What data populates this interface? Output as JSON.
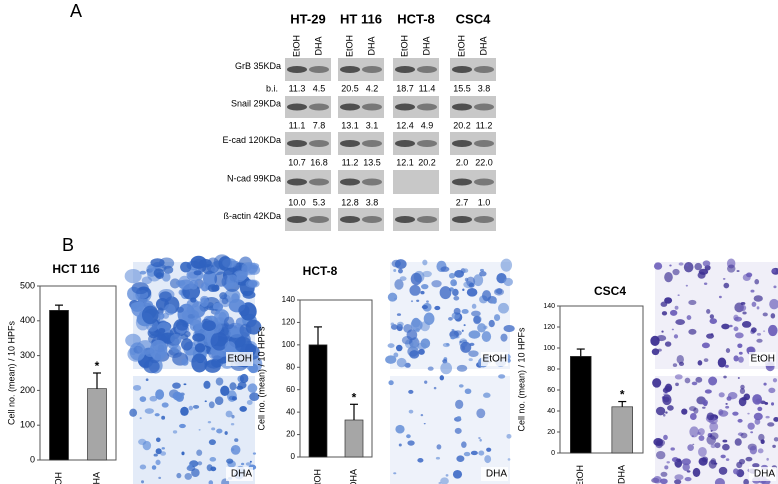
{
  "panel_a": {
    "label": "A",
    "cell_lines": [
      "HT-29",
      "HT 116",
      "HCT-8",
      "CSC4"
    ],
    "lanes": [
      "EtOH",
      "DHA"
    ],
    "bi_label": "b.i.",
    "rows": [
      {
        "protein": "GrB 35KDa",
        "values": [
          "11.3",
          "4.5",
          "20.5",
          "4.2",
          "18.7",
          "11.4",
          "15.5",
          "3.8"
        ]
      },
      {
        "protein": "Snail 29KDa",
        "values": [
          "11.1",
          "7.8",
          "13.1",
          "3.1",
          "12.4",
          "4.9",
          "20.2",
          "11.2"
        ]
      },
      {
        "protein": "E-cad 120KDa",
        "values": [
          "10.7",
          "16.8",
          "11.2",
          "13.5",
          "12.1",
          "20.2",
          "2.0",
          "22.0"
        ]
      },
      {
        "protein": "N-cad 99KDa",
        "values": [
          "10.0",
          "5.3",
          "12.8",
          "3.8",
          null,
          null,
          "2.7",
          "1.0"
        ]
      },
      {
        "protein": "ß-actin 42KDa"
      }
    ]
  },
  "panel_b": {
    "label": "B"
  },
  "chart_data": [
    {
      "type": "bar",
      "title": "HCT 116",
      "y_label": "Cell no. (mean) / 10 HPFs",
      "categories": [
        "EtOH",
        "DHA"
      ],
      "values": [
        430,
        205
      ],
      "errors": [
        15,
        45
      ],
      "colors": [
        "#000000",
        "#a6a6a6"
      ],
      "ylim": [
        0,
        500
      ],
      "yticks": [
        0,
        100,
        200,
        300,
        400,
        500
      ],
      "annotation": "*",
      "image_labels": [
        "EtOH",
        "DHA"
      ]
    },
    {
      "type": "bar",
      "title": "HCT-8",
      "y_label": "Cell no. (mean) / 10 HPFs",
      "categories": [
        "EtOH",
        "DHA"
      ],
      "values": [
        100,
        33
      ],
      "errors": [
        16,
        14
      ],
      "colors": [
        "#000000",
        "#a6a6a6"
      ],
      "ylim": [
        0,
        140
      ],
      "yticks": [
        0,
        20,
        40,
        60,
        80,
        100,
        120,
        140
      ],
      "annotation": "*",
      "image_labels": [
        "EtOH",
        "DHA"
      ]
    },
    {
      "type": "bar",
      "title": "CSC4",
      "y_label": "Cell no. (mean) / 10 HPFs",
      "categories": [
        "EtOH",
        "DHA"
      ],
      "values": [
        92,
        44
      ],
      "errors": [
        7,
        5
      ],
      "colors": [
        "#000000",
        "#a6a6a6"
      ],
      "ylim": [
        0,
        140
      ],
      "yticks": [
        0,
        20,
        40,
        60,
        80,
        100,
        120,
        140
      ],
      "annotation": "*",
      "image_labels": [
        "EtOH",
        "DHA"
      ]
    }
  ]
}
